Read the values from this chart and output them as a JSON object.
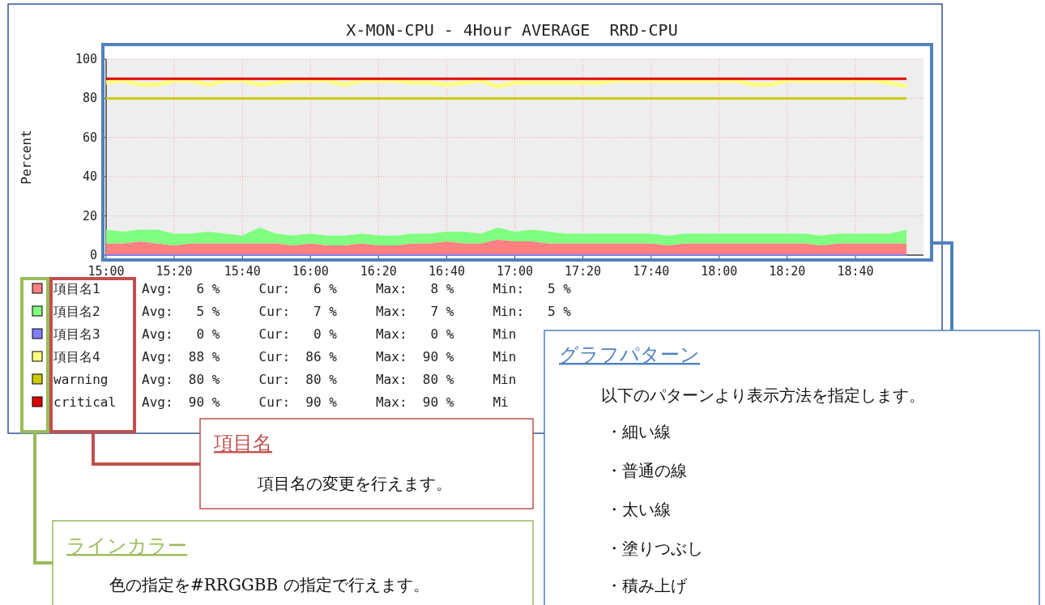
{
  "chart_data": {
    "type": "area",
    "title": "X-MON-CPU - 4Hour AVERAGE  RRD-CPU",
    "ylabel": "Percent",
    "x": [
      15,
      15.083,
      15.167,
      15.25,
      15.333,
      15.417,
      15.5,
      15.583,
      15.667,
      15.75,
      15.833,
      15.917,
      16,
      16.083,
      16.167,
      16.25,
      16.333,
      16.417,
      16.5,
      16.583,
      16.667,
      16.75,
      16.833,
      16.917,
      17,
      17.083,
      17.167,
      17.25,
      17.333,
      17.417,
      17.5,
      17.583,
      17.667,
      17.75,
      17.833,
      17.917,
      18,
      18.083,
      18.167,
      18.25,
      18.333,
      18.417,
      18.5,
      18.583,
      18.667,
      18.75,
      18.833,
      18.917
    ],
    "series": [
      {
        "name": "項目名1",
        "type": "area",
        "color": "#ff8080",
        "values": [
          6,
          6,
          7,
          6,
          5,
          6,
          6,
          6,
          6,
          6,
          6,
          5,
          6,
          5,
          5,
          6,
          5,
          5,
          6,
          6,
          7,
          6,
          6,
          8,
          7,
          7,
          6,
          6,
          6,
          6,
          6,
          6,
          6,
          5,
          6,
          6,
          6,
          6,
          6,
          6,
          6,
          6,
          5,
          6,
          6,
          6,
          6,
          6
        ]
      },
      {
        "name": "項目名2",
        "type": "area",
        "color": "#80ff80",
        "values": [
          7,
          6,
          6,
          7,
          6,
          5,
          6,
          5,
          4,
          8,
          5,
          5,
          5,
          5,
          5,
          5,
          5,
          5,
          5,
          5,
          5,
          6,
          5,
          6,
          5,
          6,
          6,
          5,
          5,
          5,
          5,
          5,
          5,
          5,
          5,
          5,
          5,
          5,
          5,
          5,
          5,
          5,
          5,
          5,
          5,
          5,
          5,
          7
        ]
      },
      {
        "name": "項目名3",
        "type": "line",
        "color": "#8080ff",
        "values": [
          0,
          0,
          0,
          0,
          0,
          0,
          0,
          0,
          0,
          0,
          0,
          0,
          0,
          0,
          0,
          0,
          0,
          0,
          0,
          0,
          0,
          0,
          0,
          0,
          0,
          0,
          0,
          0,
          0,
          0,
          0,
          0,
          0,
          0,
          0,
          0,
          0,
          0,
          0,
          0,
          0,
          0,
          0,
          0,
          0,
          0,
          0,
          0
        ]
      },
      {
        "name": "項目名4",
        "type": "line",
        "color": "#ffff80",
        "values": [
          88,
          89,
          87,
          87,
          89,
          89,
          87,
          89,
          89,
          87,
          88,
          89,
          89,
          89,
          87,
          89,
          89,
          89,
          88,
          88,
          87,
          88,
          89,
          86,
          88,
          88,
          88,
          88,
          88,
          88,
          89,
          89,
          89,
          89,
          89,
          89,
          89,
          89,
          87,
          87,
          89,
          89,
          89,
          89,
          89,
          89,
          88,
          86
        ]
      },
      {
        "name": "warning",
        "type": "line",
        "color": "#cccc00",
        "values": [
          80,
          80,
          80,
          80,
          80,
          80,
          80,
          80,
          80,
          80,
          80,
          80,
          80,
          80,
          80,
          80,
          80,
          80,
          80,
          80,
          80,
          80,
          80,
          80,
          80,
          80,
          80,
          80,
          80,
          80,
          80,
          80,
          80,
          80,
          80,
          80,
          80,
          80,
          80,
          80,
          80,
          80,
          80,
          80,
          80,
          80,
          80,
          80
        ]
      },
      {
        "name": "critical",
        "type": "line",
        "color": "#dd0000",
        "values": [
          90,
          90,
          90,
          90,
          90,
          90,
          90,
          90,
          90,
          90,
          90,
          90,
          90,
          90,
          90,
          90,
          90,
          90,
          90,
          90,
          90,
          90,
          90,
          90,
          90,
          90,
          90,
          90,
          90,
          90,
          90,
          90,
          90,
          90,
          90,
          90,
          90,
          90,
          90,
          90,
          90,
          90,
          90,
          90,
          90,
          90,
          90,
          90
        ]
      }
    ],
    "stacked": true,
    "xlim": [
      15,
      19
    ],
    "xticks": [
      {
        "value": 15,
        "label": "15:00"
      },
      {
        "value": 15.333,
        "label": "15:20"
      },
      {
        "value": 15.667,
        "label": "15:40"
      },
      {
        "value": 16,
        "label": "16:00"
      },
      {
        "value": 16.333,
        "label": "16:20"
      },
      {
        "value": 16.667,
        "label": "16:40"
      },
      {
        "value": 17,
        "label": "17:00"
      },
      {
        "value": 17.333,
        "label": "17:20"
      },
      {
        "value": 17.667,
        "label": "17:40"
      },
      {
        "value": 18,
        "label": "18:00"
      },
      {
        "value": 18.333,
        "label": "18:20"
      },
      {
        "value": 18.667,
        "label": "18:40"
      }
    ],
    "ylim": [
      0,
      100
    ],
    "yticks": [
      0,
      20,
      40,
      60,
      80,
      100
    ],
    "grid": true,
    "legend": "bottom",
    "annotations": [
      "Avg:   6 %     Cur:   6 %     Max:   8 %     Min:   5 %",
      "Avg:   5 %     Cur:   7 %     Max:   7 %     Min:   5 %",
      "Avg:   0 %     Cur:   0 %     Max:   0 %     Min",
      "Avg:  88 %     Cur:  86 %     Max:  90 %     Min",
      "Avg:  80 %     Cur:  80 %     Max:  80 %     Min",
      "Avg:  90 %     Cur:  90 %     Max:  90 %     Mi",
      "グラフパターン",
      "以下のパターンより表示方法を指定します。",
      "・細い線",
      "・普通の線",
      "・太い線",
      "・塗りつぶし",
      "・積み上げ",
      "項目名",
      "項目名の変更を行えます。",
      "ラインカラー",
      "色の指定を#RRGGBB の指定で行えます。"
    ]
  }
}
